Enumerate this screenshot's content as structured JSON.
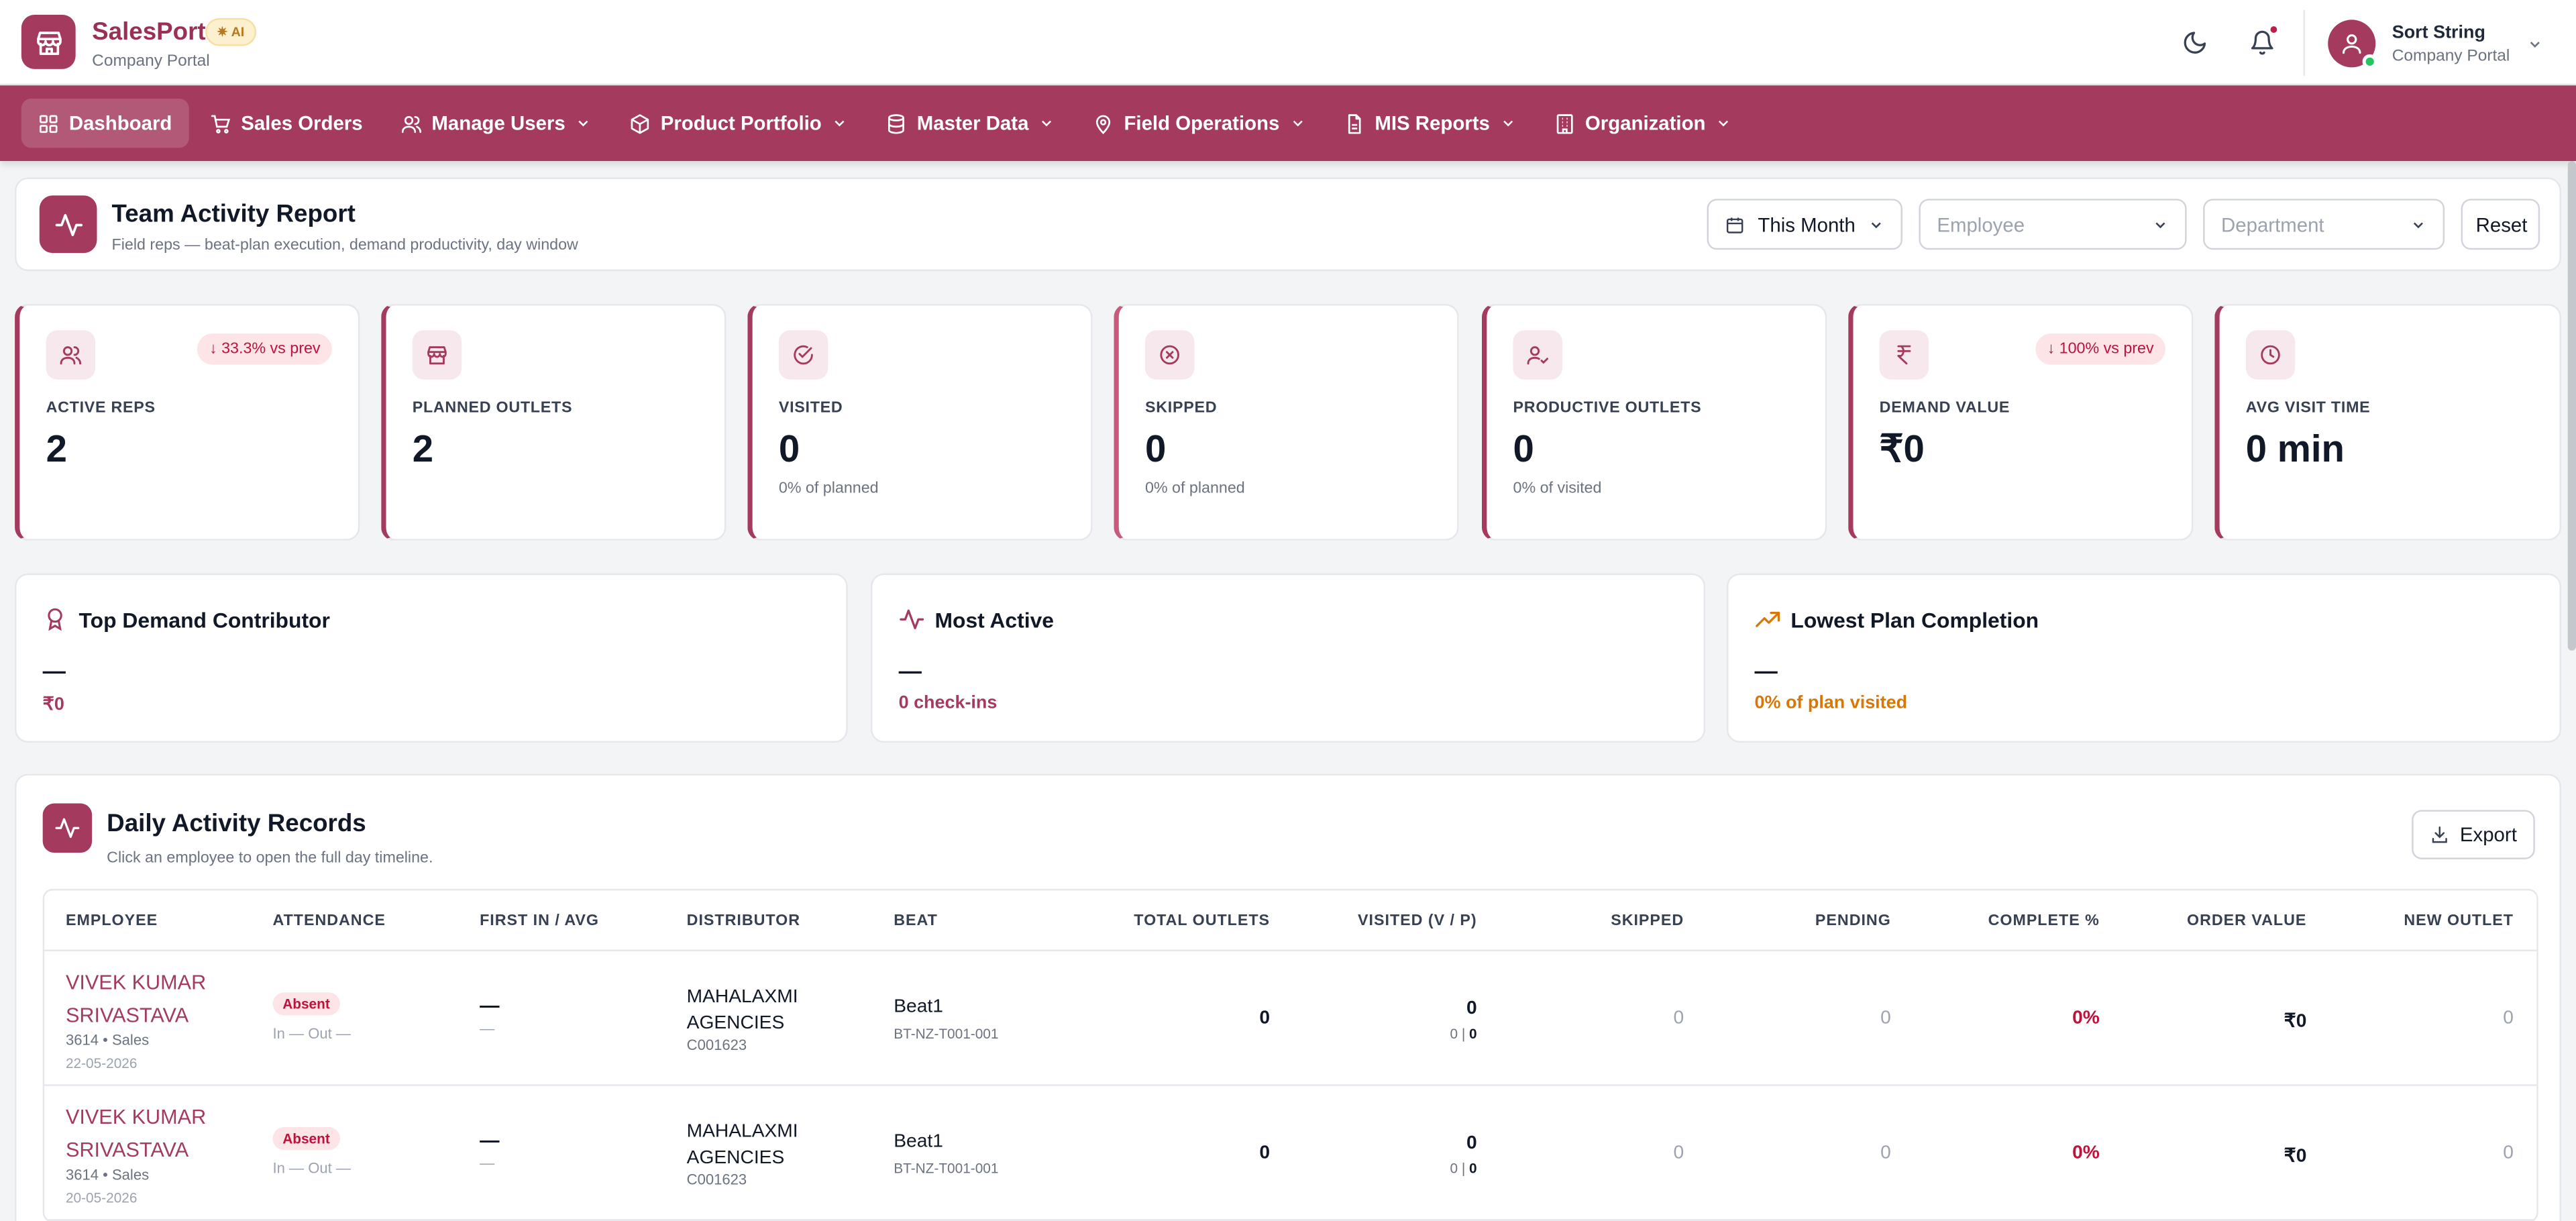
{
  "header": {
    "brand": "SalesPort",
    "ai_badge": "AI",
    "brand_sub": "Company Portal",
    "user_name": "Sort String",
    "user_role": "Company Portal"
  },
  "nav": {
    "items": [
      {
        "label": "Dashboard",
        "icon": "dashboard-icon"
      },
      {
        "label": "Sales Orders",
        "icon": "cart-icon"
      },
      {
        "label": "Manage Users",
        "icon": "users-icon"
      },
      {
        "label": "Product Portfolio",
        "icon": "box-icon"
      },
      {
        "label": "Master Data",
        "icon": "database-icon"
      },
      {
        "label": "Field Operations",
        "icon": "map-pin-icon"
      },
      {
        "label": "MIS Reports",
        "icon": "report-icon"
      },
      {
        "label": "Organization",
        "icon": "building-icon"
      }
    ]
  },
  "report": {
    "title": "Team Activity Report",
    "subtitle": "Field reps — beat-plan execution, demand productivity, day window",
    "period": "This Month",
    "employee_placeholder": "Employee",
    "department_placeholder": "Department",
    "reset_label": "Reset"
  },
  "stats": [
    {
      "label": "ACTIVE REPS",
      "value": "2",
      "sub": "",
      "trend": "↓ 33.3% vs prev",
      "icon": "users-icon"
    },
    {
      "label": "PLANNED OUTLETS",
      "value": "2",
      "sub": "",
      "trend": "",
      "icon": "store-icon"
    },
    {
      "label": "VISITED",
      "value": "0",
      "sub": "0% of planned",
      "trend": "",
      "icon": "check-circle-icon"
    },
    {
      "label": "SKIPPED",
      "value": "0",
      "sub": "0% of planned",
      "trend": "",
      "icon": "x-circle-icon"
    },
    {
      "label": "PRODUCTIVE OUTLETS",
      "value": "0",
      "sub": "0% of visited",
      "trend": "",
      "icon": "user-check-icon"
    },
    {
      "label": "DEMAND VALUE",
      "value": "₹0",
      "sub": "",
      "trend": "↓ 100% vs prev",
      "icon": "rupee-icon"
    },
    {
      "label": "AVG VISIT TIME",
      "value": "0 min",
      "sub": "",
      "trend": "",
      "icon": "clock-icon"
    }
  ],
  "insights": [
    {
      "title": "Top Demand Contributor",
      "dash": "—",
      "value": "₹0",
      "color": "#a53a5f",
      "icon": "award-icon"
    },
    {
      "title": "Most Active",
      "dash": "—",
      "value": "0 check-ins",
      "color": "#a53a5f",
      "icon": "activity-icon"
    },
    {
      "title": "Lowest Plan Completion",
      "dash": "—",
      "value": "0% of plan visited",
      "color": "#d97706",
      "icon": "trending-icon"
    }
  ],
  "table": {
    "title": "Daily Activity Records",
    "subtitle": "Click an employee to open the full day timeline.",
    "export_label": "Export",
    "columns": [
      "EMPLOYEE",
      "ATTENDANCE",
      "FIRST IN / AVG",
      "DISTRIBUTOR",
      "BEAT",
      "TOTAL OUTLETS",
      "VISITED (V / P)",
      "SKIPPED",
      "PENDING",
      "COMPLETE %",
      "ORDER VALUE",
      "NEW OUTLET"
    ],
    "rows": [
      {
        "name": "VIVEK KUMAR SRIVASTAVA",
        "meta": "3614 • Sales",
        "date": "22-05-2026",
        "attendance": "Absent",
        "inout": "In — Out —",
        "first_in": "—",
        "first_in_sub": "—",
        "distributor": "MAHALAXMI AGENCIES",
        "dist_code": "C001623",
        "beat": "Beat1",
        "beat_code": "BT-NZ-T001-001",
        "total": "0",
        "visited": "0",
        "vp_v": "0",
        "vp_p": "0",
        "skipped": "0",
        "pending": "0",
        "complete": "0%",
        "order_value": "₹0",
        "new_outlet": "0"
      },
      {
        "name": "VIVEK KUMAR SRIVASTAVA",
        "meta": "3614 • Sales",
        "date": "20-05-2026",
        "attendance": "Absent",
        "inout": "In — Out —",
        "first_in": "—",
        "first_in_sub": "—",
        "distributor": "MAHALAXMI AGENCIES",
        "dist_code": "C001623",
        "beat": "Beat1",
        "beat_code": "BT-NZ-T001-001",
        "total": "0",
        "visited": "0",
        "vp_v": "0",
        "vp_p": "0",
        "skipped": "0",
        "pending": "0",
        "complete": "0%",
        "order_value": "₹0",
        "new_outlet": "0"
      }
    ]
  }
}
